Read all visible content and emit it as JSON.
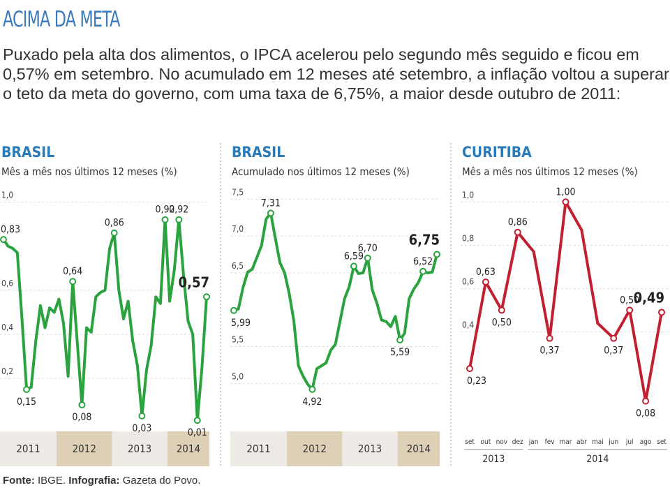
{
  "title": "ACIMA DA META",
  "description": "Puxado pela alta dos alimentos, o IPCA acelerou pelo segundo mês seguido e ficou em 0,57% em setembro. No acumulado em 12 meses até setembro, a inflação voltou a superar o teto da meta do governo, com uma taxa de 6,75%, a maior desde outubro de 2011:",
  "chart_data": [
    {
      "type": "line",
      "title": "BRASIL",
      "subtitle": "Mês a mês nos últimos 12 meses (%)",
      "color": "#2aa33f",
      "grid": true,
      "year_groups": [
        {
          "label": "2011",
          "months": 12
        },
        {
          "label": "2012",
          "months": 12
        },
        {
          "label": "2013",
          "months": 12
        },
        {
          "label": "2014",
          "months": 9
        }
      ],
      "values": [
        0.83,
        0.8,
        0.79,
        0.77,
        0.47,
        0.15,
        0.16,
        0.37,
        0.53,
        0.43,
        0.52,
        0.5,
        0.56,
        0.45,
        0.21,
        0.64,
        0.36,
        0.08,
        0.43,
        0.41,
        0.57,
        0.59,
        0.6,
        0.79,
        0.86,
        0.6,
        0.47,
        0.55,
        0.37,
        0.26,
        0.03,
        0.24,
        0.35,
        0.57,
        0.54,
        0.92,
        0.55,
        0.69,
        0.92,
        0.67,
        0.46,
        0.4,
        0.01,
        0.25,
        0.57
      ],
      "value_labels": [
        "0,83",
        null,
        null,
        null,
        null,
        "0,15",
        null,
        null,
        null,
        null,
        null,
        null,
        null,
        null,
        null,
        "0,64",
        null,
        "0,08",
        null,
        null,
        null,
        null,
        null,
        null,
        "0,86",
        null,
        null,
        null,
        null,
        null,
        "0,03",
        null,
        null,
        null,
        null,
        "0,92",
        null,
        null,
        "0,92",
        null,
        null,
        null,
        "0,01",
        null,
        "0,57"
      ],
      "ylim": [
        -0.04,
        1.03
      ],
      "yticks": [
        {
          "value": 1.0,
          "label": "1,0"
        },
        {
          "value": 0.6,
          "label": "0,6"
        },
        {
          "value": 0.4,
          "label": "0,4"
        },
        {
          "value": 0.2,
          "label": "0,2"
        }
      ]
    },
    {
      "type": "line",
      "title": "BRASIL",
      "subtitle": "Acumulado nos últimos 12 meses (%)",
      "color": "#2aa33f",
      "grid": true,
      "year_groups": [
        {
          "label": "2011",
          "months": 12
        },
        {
          "label": "2012",
          "months": 12
        },
        {
          "label": "2013",
          "months": 12
        },
        {
          "label": "2014",
          "months": 9
        }
      ],
      "values": [
        5.99,
        6.01,
        6.3,
        6.51,
        6.55,
        6.71,
        6.87,
        7.23,
        7.31,
        6.97,
        6.64,
        6.5,
        6.22,
        5.85,
        5.24,
        5.1,
        4.99,
        4.92,
        5.2,
        5.24,
        5.28,
        5.45,
        5.53,
        5.84,
        6.15,
        6.31,
        6.59,
        6.49,
        6.5,
        6.7,
        6.27,
        6.09,
        5.86,
        5.84,
        5.77,
        5.91,
        5.59,
        5.68,
        6.15,
        6.28,
        6.37,
        6.52,
        6.5,
        6.51,
        6.75
      ],
      "value_labels": [
        "5,99",
        null,
        null,
        null,
        null,
        null,
        null,
        null,
        "7,31",
        null,
        null,
        null,
        null,
        null,
        null,
        null,
        null,
        "4,92",
        null,
        null,
        null,
        null,
        null,
        null,
        null,
        null,
        "6,59",
        null,
        null,
        "6,70",
        null,
        null,
        null,
        null,
        null,
        null,
        "5,59",
        null,
        null,
        null,
        null,
        "6,52",
        null,
        null,
        "6,75"
      ],
      "ylim": [
        4.35,
        7.55
      ],
      "yticks": [
        {
          "value": 7.5,
          "label": "7,5"
        },
        {
          "value": 7.0,
          "label": "7,0"
        },
        {
          "value": 6.5,
          "label": "6,5"
        },
        {
          "value": 5.5,
          "label": "5,5"
        },
        {
          "value": 5.0,
          "label": "5,0"
        }
      ]
    },
    {
      "type": "line",
      "title": "CURITIBA",
      "subtitle": "Mês a mês nos últimos 12 meses (%)",
      "color": "#c21f30",
      "grid": true,
      "categories": [
        "set",
        "out",
        "nov",
        "dez",
        "jan",
        "fev",
        "mar",
        "abr",
        "mai",
        "jun",
        "jul",
        "ago",
        "set"
      ],
      "year_groups": [
        {
          "label": "2013",
          "months": 4
        },
        {
          "label": "2014",
          "months": 9
        }
      ],
      "values": [
        0.23,
        0.63,
        0.5,
        0.86,
        0.77,
        0.37,
        1.0,
        0.87,
        0.44,
        0.37,
        0.5,
        0.08,
        0.49
      ],
      "value_labels": [
        "0,23",
        "0,63",
        "0,50",
        "0,86",
        null,
        "0,37",
        "1,00",
        null,
        null,
        "0,37",
        "0,50",
        "0,08",
        "0,49"
      ],
      "ylim": [
        -0.06,
        1.03
      ],
      "yticks": [
        {
          "value": 1.0,
          "label": "1,0"
        },
        {
          "value": 0.8,
          "label": "0,8"
        },
        {
          "value": 0.6,
          "label": "0,6"
        },
        {
          "value": 0.4,
          "label": "0,4"
        }
      ]
    }
  ],
  "footer": {
    "source_label": "Fonte:",
    "source": "IBGE.",
    "credit_label": "Infografia:",
    "credit": "Gazeta do Povo."
  }
}
